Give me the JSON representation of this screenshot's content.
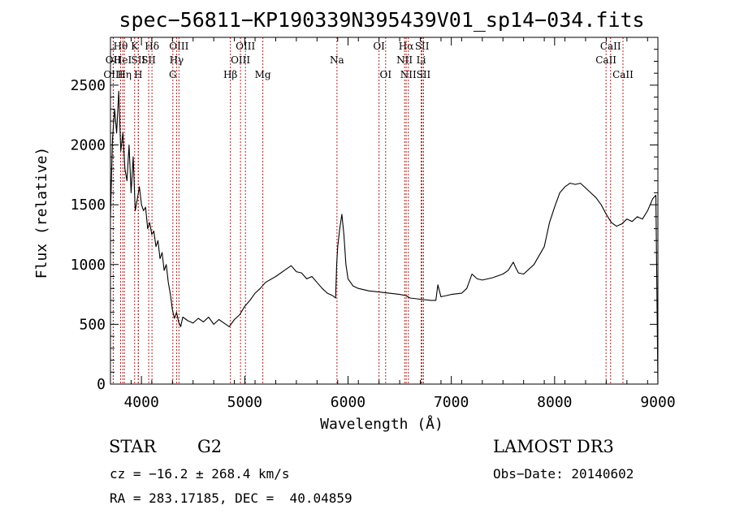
{
  "info": {
    "object_class": "STAR",
    "subclass": "G2",
    "survey": "LAMOST DR3",
    "cz": "cz = −16.2 ± 268.4 km/s",
    "obs_date": "Obs−Date: 20140602",
    "radec": "RA = 283.17185, DEC =  40.04859"
  },
  "chart_data": {
    "type": "line",
    "title": "spec−56811−KP190339N395439V01_sp14−034.fits",
    "xlabel": "Wavelength (Å)",
    "ylabel": "Flux (relative)",
    "xlim": [
      3700,
      9000
    ],
    "ylim": [
      0,
      2900
    ],
    "xticks": [
      4000,
      5000,
      6000,
      7000,
      8000,
      9000
    ],
    "yticks": [
      0,
      500,
      1000,
      1500,
      2000,
      2500
    ],
    "grid": false,
    "legend": "none",
    "line_color": "#000000",
    "marker_color": "#b22222",
    "series": [
      {
        "x": [
          3700,
          3720,
          3740,
          3760,
          3780,
          3800,
          3820,
          3840,
          3860,
          3880,
          3900,
          3920,
          3940,
          3960,
          3980,
          4000,
          4020,
          4040,
          4060,
          4080,
          4100,
          4120,
          4140,
          4160,
          4180,
          4200,
          4220,
          4240,
          4260,
          4280,
          4300,
          4320,
          4340,
          4360,
          4380,
          4400,
          4450,
          4500,
          4550,
          4600,
          4650,
          4700,
          4750,
          4800,
          4850,
          4900,
          4950,
          5000,
          5050,
          5100,
          5150,
          5200,
          5300,
          5400,
          5450,
          5500,
          5550,
          5600,
          5650,
          5700,
          5750,
          5800,
          5850,
          5880,
          5890,
          5900,
          5920,
          5940,
          5960,
          5980,
          6000,
          6050,
          6100,
          6200,
          6300,
          6400,
          6500,
          6560,
          6600,
          6700,
          6800,
          6850,
          6870,
          6900,
          7000,
          7100,
          7150,
          7200,
          7250,
          7300,
          7400,
          7500,
          7550,
          7600,
          7620,
          7650,
          7700,
          7800,
          7900,
          7950,
          8000,
          8050,
          8100,
          8150,
          8200,
          8250,
          8300,
          8350,
          8400,
          8450,
          8500,
          8550,
          8600,
          8650,
          8700,
          8750,
          8800,
          8850,
          8900,
          8950,
          8980,
          9000
        ],
        "y": [
          1400,
          2050,
          2300,
          2100,
          2450,
          1950,
          2100,
          1800,
          1700,
          2000,
          1600,
          1900,
          1450,
          1550,
          1650,
          1500,
          1450,
          1480,
          1300,
          1350,
          1250,
          1280,
          1150,
          1200,
          1050,
          1100,
          950,
          1000,
          850,
          750,
          620,
          550,
          600,
          520,
          480,
          560,
          530,
          510,
          550,
          520,
          560,
          500,
          540,
          510,
          480,
          540,
          580,
          650,
          700,
          760,
          800,
          850,
          900,
          960,
          990,
          940,
          930,
          880,
          900,
          850,
          800,
          760,
          740,
          720,
          1000,
          1150,
          1300,
          1420,
          1250,
          1000,
          880,
          820,
          800,
          780,
          770,
          760,
          750,
          740,
          720,
          710,
          700,
          700,
          830,
          730,
          750,
          760,
          800,
          920,
          880,
          870,
          890,
          920,
          950,
          1020,
          980,
          930,
          920,
          1000,
          1150,
          1350,
          1480,
          1600,
          1650,
          1680,
          1670,
          1680,
          1640,
          1600,
          1560,
          1500,
          1420,
          1350,
          1320,
          1340,
          1380,
          1360,
          1400,
          1380,
          1450,
          1550,
          1580,
          0
        ]
      }
    ],
    "spectral_lines": [
      {
        "label": "OII",
        "x": 3727,
        "row": 2
      },
      {
        "label": "OIII",
        "x": 3727,
        "row": 3
      },
      {
        "label": "Hθ",
        "x": 3798,
        "row": 1
      },
      {
        "label": "HeI",
        "x": 3819,
        "row": 2
      },
      {
        "label": "Hη",
        "x": 3835,
        "row": 3
      },
      {
        "label": "K",
        "x": 3934,
        "row": 1
      },
      {
        "label": "SII",
        "x": 3970,
        "row": 2
      },
      {
        "label": "H",
        "x": 3969,
        "row": 3
      },
      {
        "label": "Hδ",
        "x": 4102,
        "row": 1
      },
      {
        "label": "SII",
        "x": 4070,
        "row": 2
      },
      {
        "label": "OIII",
        "x": 4363,
        "row": 1
      },
      {
        "label": "Hγ",
        "x": 4340,
        "row": 2
      },
      {
        "label": "G",
        "x": 4304,
        "row": 3
      },
      {
        "label": "Hβ",
        "x": 4861,
        "row": 3
      },
      {
        "label": "OIII",
        "x": 5007,
        "row": 1
      },
      {
        "label": "OIII",
        "x": 4959,
        "row": 2
      },
      {
        "label": "Mg",
        "x": 5175,
        "row": 3
      },
      {
        "label": "Na",
        "x": 5893,
        "row": 2
      },
      {
        "label": "OI",
        "x": 6300,
        "row": 1
      },
      {
        "label": "OI",
        "x": 6364,
        "row": 3
      },
      {
        "label": "Hα",
        "x": 6563,
        "row": 1
      },
      {
        "label": "NII",
        "x": 6548,
        "row": 2
      },
      {
        "label": "NII",
        "x": 6584,
        "row": 3
      },
      {
        "label": "SII",
        "x": 6717,
        "row": 1
      },
      {
        "label": "Li",
        "x": 6708,
        "row": 2
      },
      {
        "label": "SII",
        "x": 6731,
        "row": 3
      },
      {
        "label": "CaII",
        "x": 8542,
        "row": 1
      },
      {
        "label": "CaII",
        "x": 8498,
        "row": 2
      },
      {
        "label": "CaII",
        "x": 8662,
        "row": 3
      }
    ]
  }
}
